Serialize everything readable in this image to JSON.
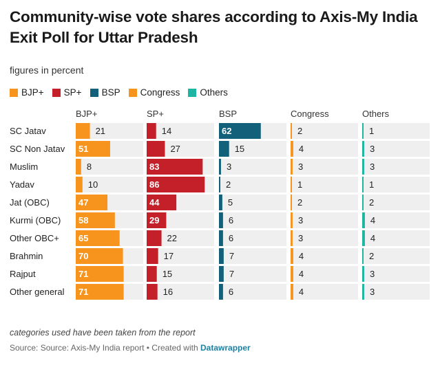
{
  "title": "Community-wise vote shares according to Axis-My India Exit Poll for Uttar Pradesh",
  "subtitle": "figures in percent",
  "legend": [
    {
      "name": "BJP+",
      "color": "#f7941d"
    },
    {
      "name": "SP+",
      "color": "#c4202a"
    },
    {
      "name": "BSP",
      "color": "#12607a"
    },
    {
      "name": "Congress",
      "color": "#f7941d"
    },
    {
      "name": "Others",
      "color": "#1fb5a3"
    }
  ],
  "note": "categories used have been taken from the report",
  "source": {
    "prefix": "Source: Source: Axis-My India report • Created with",
    "link": "Datawrapper"
  },
  "chart_data": {
    "type": "table",
    "title": "Community-wise vote shares according to Axis-My India Exit Poll for Uttar Pradesh",
    "unit": "figures in percent",
    "categories": [
      "SC Jatav",
      "SC Non Jatav",
      "Muslim",
      "Yadav",
      "Jat (OBC)",
      "Kurmi (OBC)",
      "Other OBC+",
      "Brahmin",
      "Rajput",
      "Other general"
    ],
    "max": 100,
    "series": [
      {
        "name": "BJP+",
        "color": "#f7941d",
        "values": [
          21,
          51,
          8,
          10,
          47,
          58,
          65,
          70,
          71,
          71
        ]
      },
      {
        "name": "SP+",
        "color": "#c4202a",
        "values": [
          14,
          27,
          83,
          86,
          44,
          29,
          22,
          17,
          15,
          16
        ]
      },
      {
        "name": "BSP",
        "color": "#12607a",
        "values": [
          62,
          15,
          3,
          2,
          5,
          6,
          6,
          7,
          7,
          6
        ]
      },
      {
        "name": "Congress",
        "color": "#f7941d",
        "values": [
          2,
          4,
          3,
          1,
          2,
          3,
          3,
          4,
          4,
          4
        ]
      },
      {
        "name": "Others",
        "color": "#1fb5a3",
        "values": [
          1,
          3,
          3,
          1,
          2,
          4,
          4,
          2,
          3,
          3
        ]
      }
    ]
  }
}
